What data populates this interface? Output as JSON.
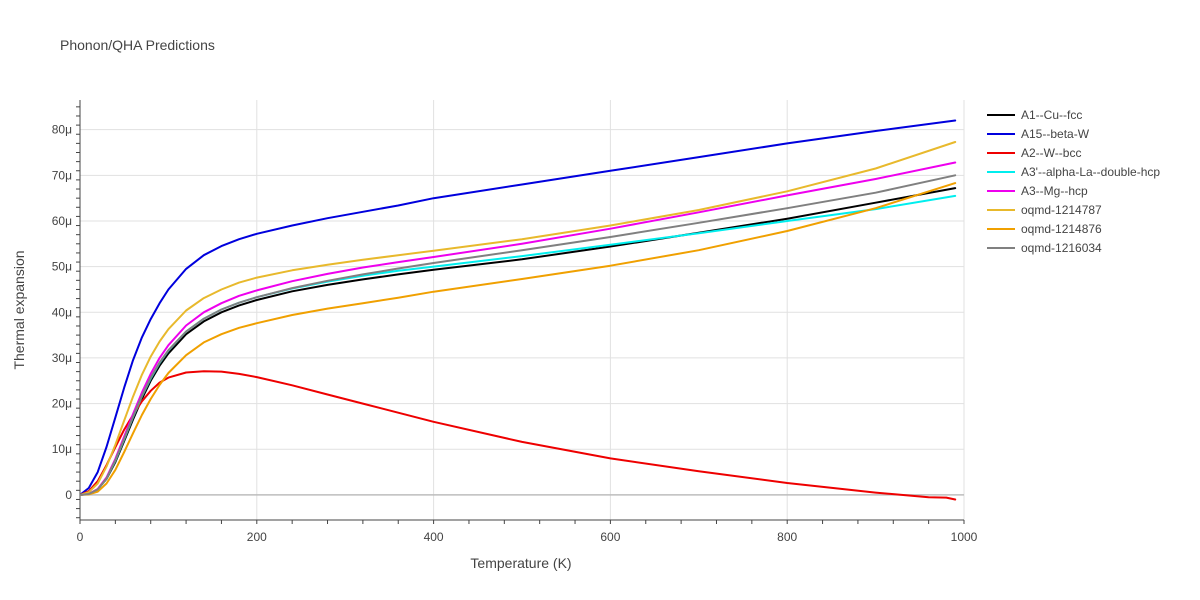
{
  "chart_data": {
    "type": "line",
    "title": "Phonon/QHA Predictions",
    "xlabel": "Temperature (K)",
    "ylabel": "Thermal expansion",
    "xlim": [
      0,
      1000
    ],
    "ylim": [
      -5.5,
      86.5
    ],
    "x_ticks": [
      0,
      200,
      400,
      600,
      800,
      1000
    ],
    "x_tick_labels": [
      "0",
      "200",
      "400",
      "600",
      "800",
      "1000"
    ],
    "y_ticks": [
      0,
      10,
      20,
      30,
      40,
      50,
      60,
      70,
      80
    ],
    "y_tick_labels": [
      "0",
      "10μ",
      "20μ",
      "30μ",
      "40μ",
      "50μ",
      "60μ",
      "70μ",
      "80μ"
    ],
    "grid": true,
    "legend_position": "right",
    "series": [
      {
        "name": "A1--Cu--fcc",
        "color": "#000000",
        "points": [
          [
            0,
            0
          ],
          [
            10,
            0.2
          ],
          [
            20,
            1.2
          ],
          [
            30,
            3.5
          ],
          [
            40,
            7.2
          ],
          [
            50,
            11.8
          ],
          [
            60,
            16.5
          ],
          [
            70,
            21
          ],
          [
            80,
            25
          ],
          [
            90,
            28.3
          ],
          [
            100,
            31
          ],
          [
            120,
            35.2
          ],
          [
            140,
            38
          ],
          [
            160,
            40
          ],
          [
            180,
            41.5
          ],
          [
            200,
            42.7
          ],
          [
            240,
            44.6
          ],
          [
            280,
            46
          ],
          [
            320,
            47.2
          ],
          [
            360,
            48.3
          ],
          [
            400,
            49.3
          ],
          [
            500,
            51.6
          ],
          [
            600,
            54.4
          ],
          [
            700,
            57.4
          ],
          [
            800,
            60.5
          ],
          [
            900,
            64
          ],
          [
            990,
            67.2
          ]
        ]
      },
      {
        "name": "A15--beta-W",
        "color": "#0000dd",
        "points": [
          [
            0,
            0
          ],
          [
            10,
            1.5
          ],
          [
            20,
            5
          ],
          [
            30,
            10.5
          ],
          [
            40,
            17
          ],
          [
            50,
            23.5
          ],
          [
            60,
            29.5
          ],
          [
            70,
            34.5
          ],
          [
            80,
            38.5
          ],
          [
            90,
            42
          ],
          [
            100,
            45
          ],
          [
            120,
            49.5
          ],
          [
            140,
            52.5
          ],
          [
            160,
            54.5
          ],
          [
            180,
            56
          ],
          [
            200,
            57.2
          ],
          [
            240,
            59
          ],
          [
            280,
            60.6
          ],
          [
            320,
            62
          ],
          [
            360,
            63.4
          ],
          [
            400,
            65
          ],
          [
            500,
            68
          ],
          [
            600,
            71
          ],
          [
            700,
            74
          ],
          [
            800,
            77
          ],
          [
            900,
            79.7
          ],
          [
            990,
            82
          ]
        ]
      },
      {
        "name": "A2--W--bcc",
        "color": "#ee0000",
        "points": [
          [
            0,
            0
          ],
          [
            10,
            0.8
          ],
          [
            20,
            3
          ],
          [
            30,
            6.5
          ],
          [
            40,
            10.5
          ],
          [
            50,
            14.3
          ],
          [
            60,
            17.5
          ],
          [
            70,
            20.5
          ],
          [
            80,
            22.8
          ],
          [
            90,
            24.6
          ],
          [
            100,
            25.7
          ],
          [
            120,
            26.8
          ],
          [
            140,
            27.1
          ],
          [
            160,
            27
          ],
          [
            180,
            26.5
          ],
          [
            200,
            25.8
          ],
          [
            240,
            24
          ],
          [
            280,
            22
          ],
          [
            320,
            20
          ],
          [
            360,
            18
          ],
          [
            400,
            16
          ],
          [
            500,
            11.6
          ],
          [
            600,
            8
          ],
          [
            700,
            5.2
          ],
          [
            800,
            2.6
          ],
          [
            900,
            0.5
          ],
          [
            960,
            -0.5
          ],
          [
            980,
            -0.6
          ],
          [
            990,
            -1
          ]
        ]
      },
      {
        "name": "A3'--alpha-La--double-hcp",
        "color": "#00eeee",
        "points": [
          [
            0,
            0
          ],
          [
            10,
            0.2
          ],
          [
            20,
            1.2
          ],
          [
            30,
            3.6
          ],
          [
            40,
            7.5
          ],
          [
            50,
            12.2
          ],
          [
            60,
            17
          ],
          [
            70,
            21.6
          ],
          [
            80,
            25.5
          ],
          [
            90,
            28.9
          ],
          [
            100,
            31.6
          ],
          [
            120,
            35.8
          ],
          [
            140,
            38.6
          ],
          [
            160,
            40.6
          ],
          [
            180,
            42.1
          ],
          [
            200,
            43.3
          ],
          [
            240,
            45.2
          ],
          [
            280,
            46.7
          ],
          [
            320,
            48
          ],
          [
            360,
            49.1
          ],
          [
            400,
            50
          ],
          [
            500,
            52.3
          ],
          [
            600,
            54.8
          ],
          [
            700,
            57.3
          ],
          [
            800,
            60
          ],
          [
            900,
            62.6
          ],
          [
            990,
            65.5
          ]
        ]
      },
      {
        "name": "A3--Mg--hcp",
        "color": "#ee00ee",
        "points": [
          [
            0,
            0
          ],
          [
            10,
            0.2
          ],
          [
            20,
            1.3
          ],
          [
            30,
            3.8
          ],
          [
            40,
            7.9
          ],
          [
            50,
            12.8
          ],
          [
            60,
            17.7
          ],
          [
            70,
            22.4
          ],
          [
            80,
            26.5
          ],
          [
            90,
            30
          ],
          [
            100,
            32.8
          ],
          [
            120,
            37.1
          ],
          [
            140,
            40
          ],
          [
            160,
            42
          ],
          [
            180,
            43.6
          ],
          [
            200,
            44.8
          ],
          [
            240,
            46.8
          ],
          [
            280,
            48.4
          ],
          [
            320,
            49.8
          ],
          [
            360,
            51
          ],
          [
            400,
            52.1
          ],
          [
            500,
            55
          ],
          [
            600,
            58.3
          ],
          [
            700,
            61.9
          ],
          [
            800,
            65.6
          ],
          [
            900,
            69.2
          ],
          [
            990,
            72.8
          ]
        ]
      },
      {
        "name": "oqmd-1214787",
        "color": "#e8b92c",
        "points": [
          [
            0,
            0
          ],
          [
            10,
            0.6
          ],
          [
            20,
            2.5
          ],
          [
            30,
            6.2
          ],
          [
            40,
            11
          ],
          [
            50,
            16.3
          ],
          [
            60,
            21.5
          ],
          [
            70,
            26.3
          ],
          [
            80,
            30.3
          ],
          [
            90,
            33.6
          ],
          [
            100,
            36.3
          ],
          [
            120,
            40.4
          ],
          [
            140,
            43.1
          ],
          [
            160,
            45
          ],
          [
            180,
            46.5
          ],
          [
            200,
            47.6
          ],
          [
            240,
            49.2
          ],
          [
            280,
            50.4
          ],
          [
            320,
            51.5
          ],
          [
            360,
            52.5
          ],
          [
            400,
            53.5
          ],
          [
            500,
            56
          ],
          [
            600,
            59
          ],
          [
            700,
            62.4
          ],
          [
            800,
            66.5
          ],
          [
            900,
            71.5
          ],
          [
            990,
            77.3
          ]
        ]
      },
      {
        "name": "oqmd-1214876",
        "color": "#f0a000",
        "points": [
          [
            0,
            0
          ],
          [
            10,
            0.1
          ],
          [
            20,
            0.7
          ],
          [
            30,
            2.5
          ],
          [
            40,
            5.5
          ],
          [
            50,
            9.4
          ],
          [
            60,
            13.5
          ],
          [
            70,
            17.5
          ],
          [
            80,
            21
          ],
          [
            90,
            24.1
          ],
          [
            100,
            26.7
          ],
          [
            120,
            30.6
          ],
          [
            140,
            33.4
          ],
          [
            160,
            35.2
          ],
          [
            180,
            36.6
          ],
          [
            200,
            37.6
          ],
          [
            240,
            39.4
          ],
          [
            280,
            40.8
          ],
          [
            320,
            42
          ],
          [
            360,
            43.2
          ],
          [
            400,
            44.5
          ],
          [
            500,
            47.3
          ],
          [
            600,
            50.2
          ],
          [
            700,
            53.6
          ],
          [
            800,
            57.8
          ],
          [
            900,
            62.8
          ],
          [
            990,
            68.3
          ]
        ]
      },
      {
        "name": "oqmd-1216034",
        "color": "#808080",
        "points": [
          [
            0,
            0
          ],
          [
            10,
            0.2
          ],
          [
            20,
            1.2
          ],
          [
            30,
            3.6
          ],
          [
            40,
            7.6
          ],
          [
            50,
            12.3
          ],
          [
            60,
            17.1
          ],
          [
            70,
            21.7
          ],
          [
            80,
            25.7
          ],
          [
            90,
            29
          ],
          [
            100,
            31.7
          ],
          [
            120,
            35.8
          ],
          [
            140,
            38.6
          ],
          [
            160,
            40.6
          ],
          [
            180,
            42.1
          ],
          [
            200,
            43.3
          ],
          [
            240,
            45.3
          ],
          [
            280,
            46.9
          ],
          [
            320,
            48.3
          ],
          [
            360,
            49.6
          ],
          [
            400,
            50.8
          ],
          [
            500,
            53.6
          ],
          [
            600,
            56.5
          ],
          [
            700,
            59.6
          ],
          [
            800,
            62.8
          ],
          [
            900,
            66.2
          ],
          [
            990,
            70
          ]
        ]
      }
    ]
  }
}
